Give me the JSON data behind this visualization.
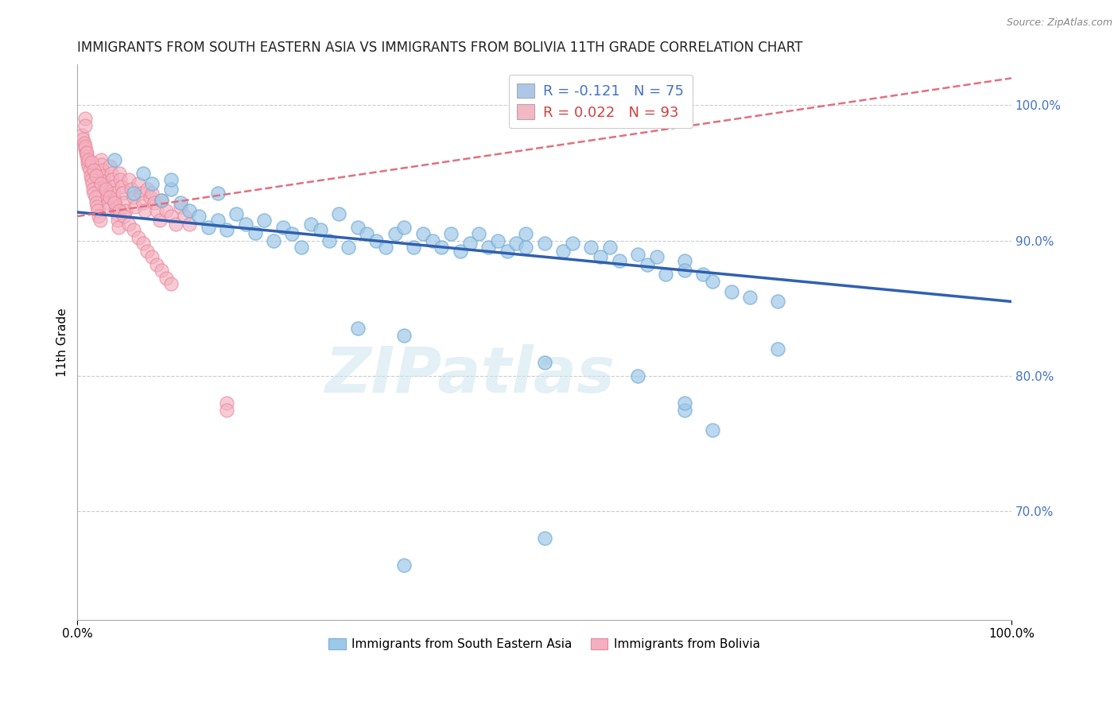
{
  "title": "IMMIGRANTS FROM SOUTH EASTERN ASIA VS IMMIGRANTS FROM BOLIVIA 11TH GRADE CORRELATION CHART",
  "source": "Source: ZipAtlas.com",
  "ylabel": "11th Grade",
  "right_ytick_values": [
    0.7,
    0.8,
    0.9,
    1.0
  ],
  "right_ytick_labels": [
    "70.0%",
    "80.0%",
    "90.0%",
    "100.0%"
  ],
  "legend_top": [
    {
      "label": "R = -0.121   N = 75",
      "color_text": "#4472c4",
      "patch_color": "#aec6e8"
    },
    {
      "label": "R = 0.022   N = 93",
      "color_text": "#d04040",
      "patch_color": "#f4b8c4"
    }
  ],
  "legend_bottom_labels": [
    "Immigrants from South Eastern Asia",
    "Immigrants from Bolivia"
  ],
  "blue_marker_color": "#9ec8e8",
  "blue_edge_color": "#7ab0d8",
  "pink_marker_color": "#f4b0c0",
  "pink_edge_color": "#e88898",
  "trendline_blue": {
    "color": "#3060b0",
    "lw": 2.5,
    "ls": "solid"
  },
  "trendline_pink": {
    "color": "#e07080",
    "lw": 1.8,
    "ls": "dashed"
  },
  "watermark_text": "ZIPatlas",
  "watermark_color": "#cce4f0",
  "grid_color": "#cccccc",
  "background_color": "#ffffff",
  "xlim": [
    0.0,
    1.0
  ],
  "ylim": [
    0.62,
    1.03
  ],
  "blue_trend_x": [
    0.0,
    1.0
  ],
  "blue_trend_y": [
    0.921,
    0.855
  ],
  "pink_trend_x": [
    0.0,
    1.0
  ],
  "pink_trend_y": [
    0.918,
    1.02
  ],
  "blue_x": [
    0.04,
    0.06,
    0.07,
    0.08,
    0.09,
    0.1,
    0.1,
    0.11,
    0.12,
    0.13,
    0.14,
    0.15,
    0.15,
    0.16,
    0.17,
    0.18,
    0.19,
    0.2,
    0.21,
    0.22,
    0.23,
    0.24,
    0.25,
    0.26,
    0.27,
    0.28,
    0.29,
    0.3,
    0.31,
    0.32,
    0.33,
    0.34,
    0.35,
    0.36,
    0.37,
    0.38,
    0.39,
    0.4,
    0.41,
    0.42,
    0.43,
    0.44,
    0.45,
    0.46,
    0.47,
    0.48,
    0.48,
    0.5,
    0.52,
    0.53,
    0.55,
    0.56,
    0.57,
    0.58,
    0.6,
    0.61,
    0.62,
    0.63,
    0.65,
    0.65,
    0.67,
    0.68,
    0.7,
    0.72,
    0.75,
    0.3,
    0.35,
    0.5,
    0.6,
    0.65,
    0.68,
    0.75,
    0.65,
    0.5,
    0.35
  ],
  "blue_y": [
    0.96,
    0.935,
    0.95,
    0.942,
    0.93,
    0.938,
    0.945,
    0.928,
    0.922,
    0.918,
    0.91,
    0.935,
    0.915,
    0.908,
    0.92,
    0.912,
    0.906,
    0.915,
    0.9,
    0.91,
    0.905,
    0.895,
    0.912,
    0.908,
    0.9,
    0.92,
    0.895,
    0.91,
    0.905,
    0.9,
    0.895,
    0.905,
    0.91,
    0.895,
    0.905,
    0.9,
    0.895,
    0.905,
    0.892,
    0.898,
    0.905,
    0.895,
    0.9,
    0.892,
    0.898,
    0.905,
    0.895,
    0.898,
    0.892,
    0.898,
    0.895,
    0.888,
    0.895,
    0.885,
    0.89,
    0.882,
    0.888,
    0.875,
    0.885,
    0.878,
    0.875,
    0.87,
    0.862,
    0.858,
    0.855,
    0.835,
    0.83,
    0.81,
    0.8,
    0.775,
    0.76,
    0.82,
    0.78,
    0.68,
    0.66
  ],
  "pink_x": [
    0.005,
    0.006,
    0.007,
    0.008,
    0.009,
    0.01,
    0.011,
    0.012,
    0.013,
    0.014,
    0.015,
    0.016,
    0.017,
    0.018,
    0.019,
    0.02,
    0.021,
    0.022,
    0.023,
    0.024,
    0.025,
    0.026,
    0.027,
    0.028,
    0.029,
    0.03,
    0.031,
    0.032,
    0.033,
    0.034,
    0.035,
    0.036,
    0.037,
    0.038,
    0.039,
    0.04,
    0.041,
    0.042,
    0.043,
    0.044,
    0.045,
    0.046,
    0.047,
    0.048,
    0.05,
    0.052,
    0.055,
    0.058,
    0.06,
    0.062,
    0.065,
    0.068,
    0.07,
    0.072,
    0.075,
    0.078,
    0.08,
    0.082,
    0.085,
    0.088,
    0.09,
    0.095,
    0.1,
    0.105,
    0.11,
    0.115,
    0.12,
    0.008,
    0.01,
    0.012,
    0.015,
    0.018,
    0.02,
    0.025,
    0.03,
    0.035,
    0.04,
    0.045,
    0.05,
    0.055,
    0.06,
    0.065,
    0.07,
    0.075,
    0.08,
    0.085,
    0.09,
    0.095,
    0.1,
    0.008,
    0.16,
    0.008,
    0.16
  ],
  "pink_y": [
    0.978,
    0.975,
    0.972,
    0.968,
    0.965,
    0.962,
    0.958,
    0.955,
    0.952,
    0.948,
    0.945,
    0.942,
    0.938,
    0.935,
    0.932,
    0.928,
    0.925,
    0.922,
    0.918,
    0.915,
    0.96,
    0.956,
    0.952,
    0.948,
    0.944,
    0.94,
    0.936,
    0.932,
    0.928,
    0.924,
    0.955,
    0.95,
    0.945,
    0.94,
    0.935,
    0.93,
    0.925,
    0.92,
    0.915,
    0.91,
    0.95,
    0.945,
    0.94,
    0.935,
    0.928,
    0.922,
    0.945,
    0.938,
    0.932,
    0.925,
    0.942,
    0.935,
    0.928,
    0.922,
    0.938,
    0.932,
    0.935,
    0.928,
    0.922,
    0.915,
    0.93,
    0.922,
    0.918,
    0.912,
    0.925,
    0.918,
    0.912,
    0.97,
    0.965,
    0.96,
    0.958,
    0.952,
    0.948,
    0.942,
    0.938,
    0.932,
    0.928,
    0.922,
    0.918,
    0.912,
    0.908,
    0.902,
    0.898,
    0.892,
    0.888,
    0.882,
    0.878,
    0.872,
    0.868,
    0.99,
    0.78,
    0.985,
    0.775
  ],
  "title_fontsize": 12,
  "ylabel_fontsize": 11,
  "tick_fontsize": 11,
  "source_fontsize": 9,
  "marker_size": 150
}
